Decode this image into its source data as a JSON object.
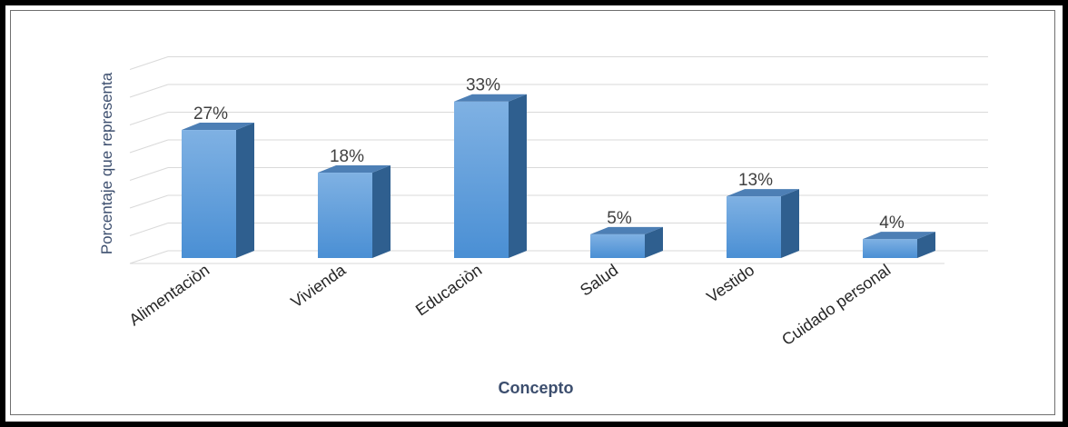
{
  "chart_data": {
    "type": "bar",
    "categories": [
      "Alimentaciòn",
      "Vivienda",
      "Educaciòn",
      "Salud",
      "Vestido",
      "Cuidado personal"
    ],
    "values": [
      27,
      18,
      33,
      5,
      13,
      4
    ],
    "value_labels": [
      "27%",
      "18%",
      "33%",
      "5%",
      "13%",
      "4%"
    ],
    "xlabel": "Concepto",
    "ylabel": "Porcentaje que representa",
    "ylim": [
      0,
      35
    ],
    "grid": true,
    "style": "3d-column",
    "colors": {
      "bar_top": "#7fb1e3",
      "bar_front": "#5b9bd5",
      "bar_side": "#2f5f8f",
      "bar_cap": "#4d7fb5",
      "grid": "#d9d9d9",
      "title": "#3c4e6e"
    }
  }
}
